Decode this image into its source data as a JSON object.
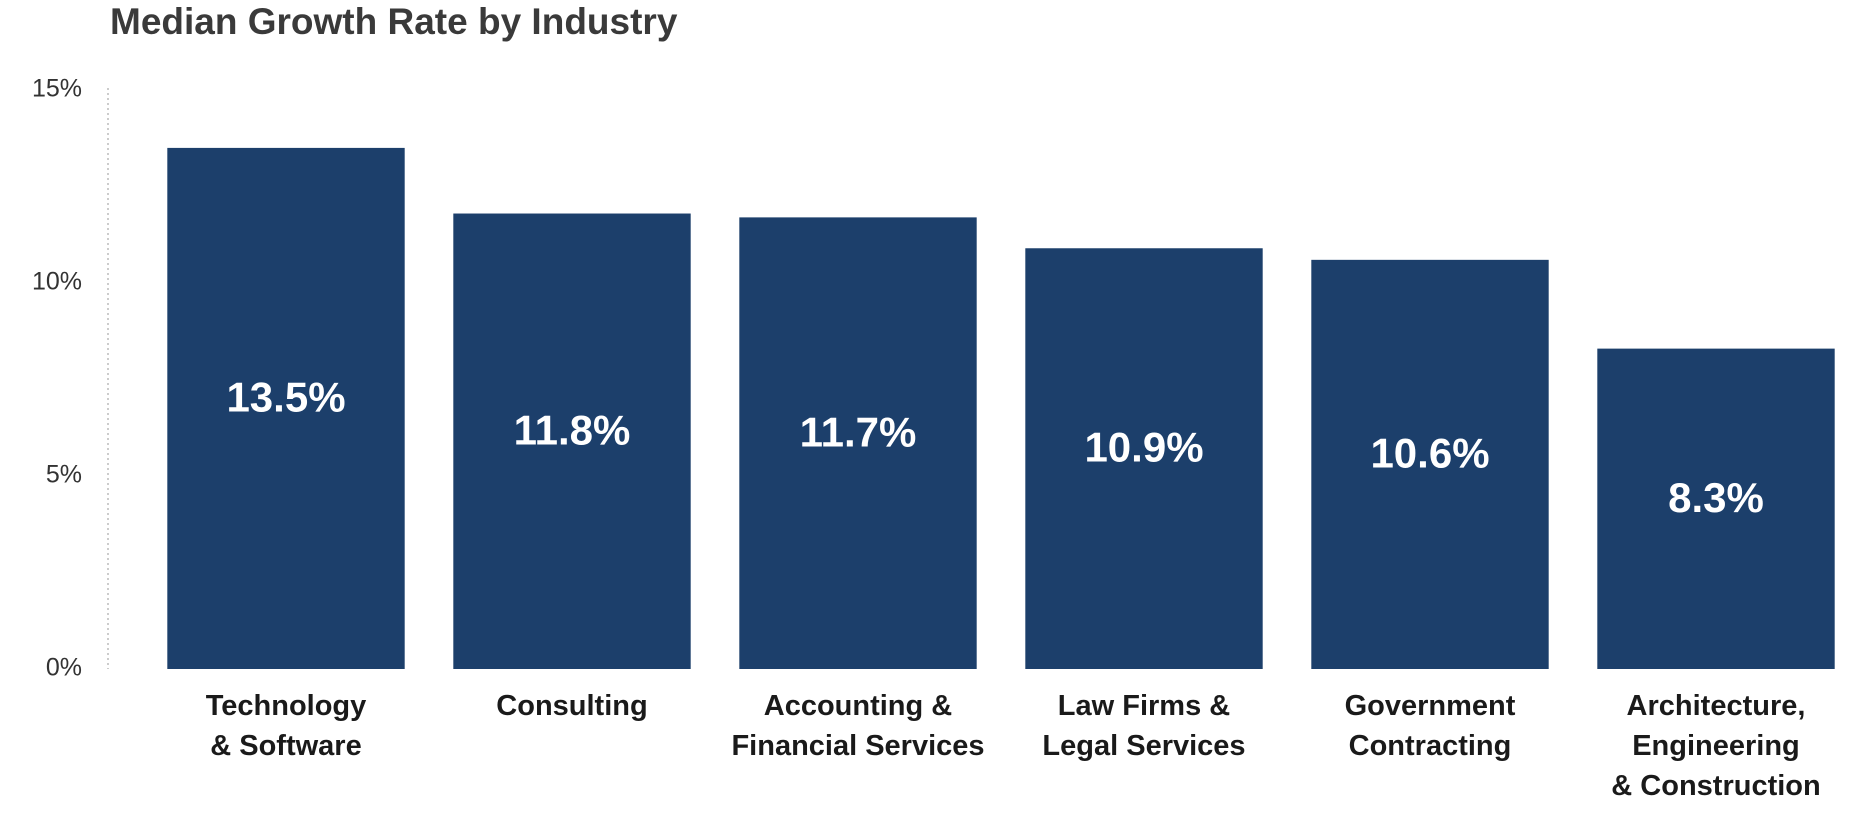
{
  "chart_data": {
    "type": "bar",
    "title": "Median Growth Rate by Industry",
    "categories": [
      "Technology\n& Software",
      "Consulting",
      "Accounting &\nFinancial Services",
      "Law Firms &\nLegal Services",
      "Government\nContracting",
      "Architecture,\nEngineering\n& Construction"
    ],
    "values": [
      13.5,
      11.8,
      11.7,
      10.9,
      10.6,
      8.3
    ],
    "value_labels": [
      "13.5%",
      "11.8%",
      "11.7%",
      "10.9%",
      "10.6%",
      "8.3%"
    ],
    "color": "#1c3f6b",
    "ylim": [
      0,
      15
    ],
    "yticks": [
      {
        "value": 0,
        "label": "0%"
      },
      {
        "value": 5,
        "label": "5%"
      },
      {
        "value": 10,
        "label": "10%"
      },
      {
        "value": 15,
        "label": "15%"
      }
    ],
    "grid": false
  }
}
